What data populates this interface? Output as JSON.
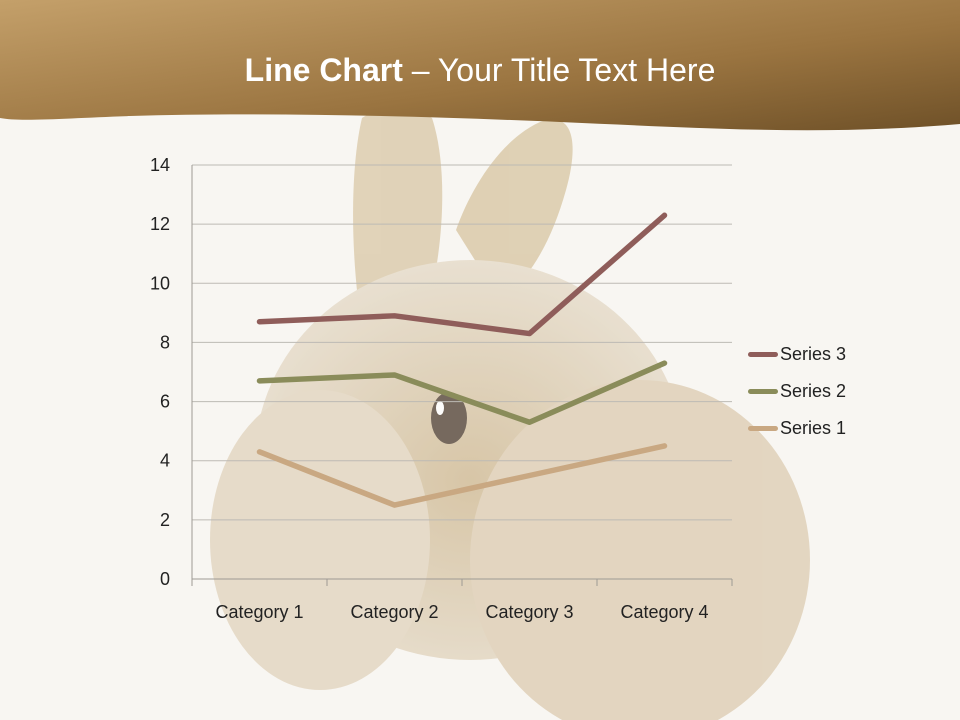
{
  "title": {
    "bold": "Line Chart",
    "rest": " – Your Title Text Here"
  },
  "colors": {
    "banner_start": "#c09a62",
    "banner_end": "#7a5a2e",
    "series_3": "#8f5d5a",
    "series_2": "#8a8c5a",
    "series_1": "#c9a882"
  },
  "chart_data": {
    "type": "line",
    "title": "",
    "xlabel": "",
    "ylabel": "",
    "categories": [
      "Category 1",
      "Category 2",
      "Category 3",
      "Category 4"
    ],
    "ylim": [
      0,
      14
    ],
    "yticks": [
      0,
      2,
      4,
      6,
      8,
      10,
      12,
      14
    ],
    "grid": true,
    "legend_position": "right",
    "series": [
      {
        "name": "Series 1",
        "values": [
          4.3,
          2.5,
          3.5,
          4.5
        ],
        "color": "#c9a882"
      },
      {
        "name": "Series 2",
        "values": [
          6.7,
          6.9,
          5.3,
          7.3
        ],
        "color": "#8a8c5a"
      },
      {
        "name": "Series 3",
        "values": [
          8.7,
          8.9,
          8.3,
          12.3
        ],
        "color": "#8f5d5a"
      }
    ]
  }
}
